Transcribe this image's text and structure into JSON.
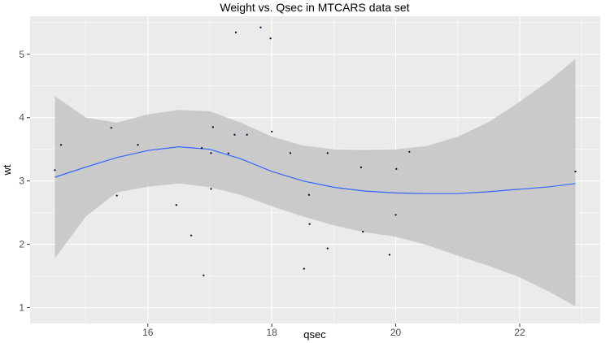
{
  "chart_data": {
    "type": "scatter",
    "title": "Weight vs. Qsec in MTCARS data set",
    "xlabel": "qsec",
    "ylabel": "wt",
    "xlim": [
      14.1,
      23.3
    ],
    "ylim": [
      0.75,
      5.6
    ],
    "x_ticks": [
      16,
      18,
      20,
      22
    ],
    "y_ticks": [
      1,
      2,
      3,
      4,
      5
    ],
    "x_minor": [
      15,
      17,
      19,
      21,
      23
    ],
    "y_minor": [
      1.5,
      2.5,
      3.5,
      4.5,
      5.5
    ],
    "grid": true,
    "colors": {
      "panel": "#ebebeb",
      "grid": "#ffffff",
      "ribbon": "#c4c4c4",
      "line": "#3366ff",
      "point": "#000033"
    },
    "points": [
      {
        "x": 14.5,
        "y": 3.17
      },
      {
        "x": 14.6,
        "y": 3.57
      },
      {
        "x": 15.41,
        "y": 3.84
      },
      {
        "x": 15.5,
        "y": 2.77
      },
      {
        "x": 15.84,
        "y": 3.57
      },
      {
        "x": 16.46,
        "y": 2.62
      },
      {
        "x": 16.7,
        "y": 2.14
      },
      {
        "x": 16.87,
        "y": 3.52
      },
      {
        "x": 16.9,
        "y": 1.51
      },
      {
        "x": 17.02,
        "y": 2.875
      },
      {
        "x": 17.02,
        "y": 3.44
      },
      {
        "x": 17.05,
        "y": 3.85
      },
      {
        "x": 17.3,
        "y": 3.435
      },
      {
        "x": 17.4,
        "y": 3.73
      },
      {
        "x": 17.42,
        "y": 5.345
      },
      {
        "x": 17.6,
        "y": 3.73
      },
      {
        "x": 17.82,
        "y": 5.424
      },
      {
        "x": 17.98,
        "y": 5.25
      },
      {
        "x": 18.0,
        "y": 3.78
      },
      {
        "x": 18.3,
        "y": 3.44
      },
      {
        "x": 18.52,
        "y": 1.615
      },
      {
        "x": 18.6,
        "y": 2.78
      },
      {
        "x": 18.61,
        "y": 2.32
      },
      {
        "x": 18.9,
        "y": 3.44
      },
      {
        "x": 18.9,
        "y": 1.935
      },
      {
        "x": 19.44,
        "y": 3.215
      },
      {
        "x": 19.47,
        "y": 2.2
      },
      {
        "x": 19.9,
        "y": 1.835
      },
      {
        "x": 20.0,
        "y": 2.465
      },
      {
        "x": 20.01,
        "y": 3.19
      },
      {
        "x": 20.22,
        "y": 3.46
      },
      {
        "x": 22.9,
        "y": 3.15
      }
    ],
    "smooth": {
      "method": "loess",
      "x": [
        14.5,
        15.0,
        15.5,
        16.0,
        16.5,
        17.0,
        17.5,
        18.0,
        18.5,
        19.0,
        19.5,
        20.0,
        20.5,
        21.0,
        21.5,
        22.0,
        22.5,
        22.9
      ],
      "fit": [
        3.06,
        3.22,
        3.37,
        3.48,
        3.54,
        3.5,
        3.35,
        3.15,
        3.0,
        2.9,
        2.84,
        2.81,
        2.8,
        2.8,
        2.83,
        2.87,
        2.91,
        2.96
      ],
      "upper": [
        4.34,
        4.0,
        3.92,
        4.05,
        4.12,
        4.1,
        3.92,
        3.7,
        3.56,
        3.5,
        3.49,
        3.5,
        3.55,
        3.7,
        3.93,
        4.25,
        4.6,
        4.93
      ],
      "lower": [
        1.78,
        2.44,
        2.82,
        2.91,
        2.96,
        2.9,
        2.78,
        2.6,
        2.44,
        2.3,
        2.19,
        2.12,
        1.99,
        1.82,
        1.66,
        1.48,
        1.24,
        1.02
      ]
    }
  }
}
